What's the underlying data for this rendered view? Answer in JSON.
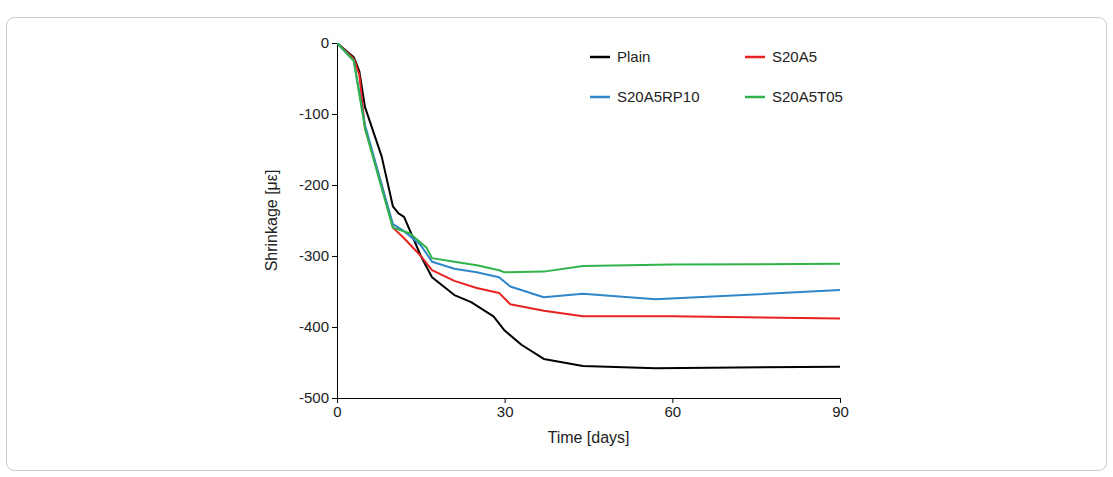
{
  "chart_data": {
    "type": "line",
    "x_label": "Time [days]",
    "y_label": "Shrinkage [με]",
    "xlim": [
      0,
      90
    ],
    "xticks": [
      0,
      30,
      60,
      90
    ],
    "ylim": [
      -500,
      0
    ],
    "yticks": [
      0,
      -100,
      -200,
      -300,
      -400,
      -500
    ],
    "grid": false,
    "legend": "upper right",
    "series": [
      {
        "name": "Plain",
        "color": "#000000",
        "x": [
          0,
          3,
          4,
          5,
          8,
          10,
          11,
          12,
          15,
          17,
          21,
          24,
          28,
          30,
          33,
          37,
          44,
          57,
          90
        ],
        "values": [
          0,
          -20,
          -40,
          -90,
          -160,
          -230,
          -240,
          -245,
          -300,
          -330,
          -355,
          -365,
          -385,
          -405,
          -425,
          -445,
          -455,
          -458,
          -456
        ]
      },
      {
        "name": "S20A5",
        "color": "#e8221f",
        "x": [
          0,
          3,
          4,
          5,
          8,
          10,
          12,
          15,
          17,
          21,
          25,
          29,
          31,
          37,
          44,
          60,
          90
        ],
        "values": [
          0,
          -22,
          -45,
          -120,
          -200,
          -260,
          -275,
          -300,
          -320,
          -335,
          -345,
          -352,
          -368,
          -377,
          -385,
          -385,
          -388
        ]
      },
      {
        "name": "S20A5RP10",
        "color": "#2f86c8",
        "x": [
          0,
          3,
          5,
          8,
          10,
          12,
          15,
          17,
          21,
          25,
          29,
          31,
          37,
          44,
          57,
          90
        ],
        "values": [
          0,
          -25,
          -115,
          -200,
          -255,
          -265,
          -285,
          -308,
          -318,
          -323,
          -330,
          -343,
          -358,
          -353,
          -361,
          -348
        ]
      },
      {
        "name": "S20A5T05",
        "color": "#2fb34a",
        "x": [
          0,
          3,
          5,
          8,
          10,
          13,
          16,
          17,
          21,
          25,
          29,
          30,
          37,
          44,
          60,
          90
        ],
        "values": [
          0,
          -25,
          -120,
          -205,
          -260,
          -268,
          -288,
          -303,
          -308,
          -313,
          -320,
          -323,
          -322,
          -314,
          -312,
          -311
        ]
      }
    ]
  }
}
